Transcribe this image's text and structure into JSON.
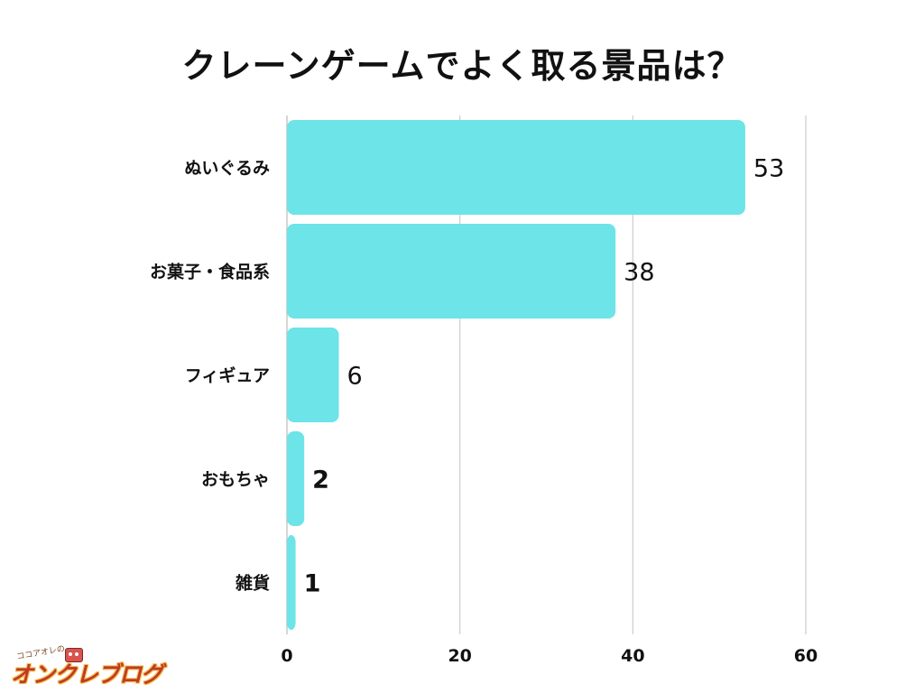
{
  "title": "クレーンゲームでよく取る景品は？",
  "colors": {
    "bar": "#6ce4e8",
    "grid": "#cccccc",
    "text": "#111111"
  },
  "logo": {
    "small_text": "ココアオレの",
    "main_text": "オンクレブログ"
  },
  "chart_data": {
    "type": "bar",
    "orientation": "horizontal",
    "title": "クレーンゲームでよく取る景品は？",
    "categories": [
      "ぬいぐるみ",
      "お菓子・食品系",
      "フィギュア",
      "おもちゃ",
      "雑貨"
    ],
    "values": [
      53,
      38,
      6,
      2,
      1
    ],
    "value_labels": [
      "53",
      "38",
      "6",
      "2",
      "1"
    ],
    "xlim": [
      0,
      60
    ],
    "xticks": [
      0,
      20,
      40,
      60
    ],
    "xlabel": "",
    "ylabel": "",
    "grid": true,
    "bar_color": "#6ce4e8"
  }
}
